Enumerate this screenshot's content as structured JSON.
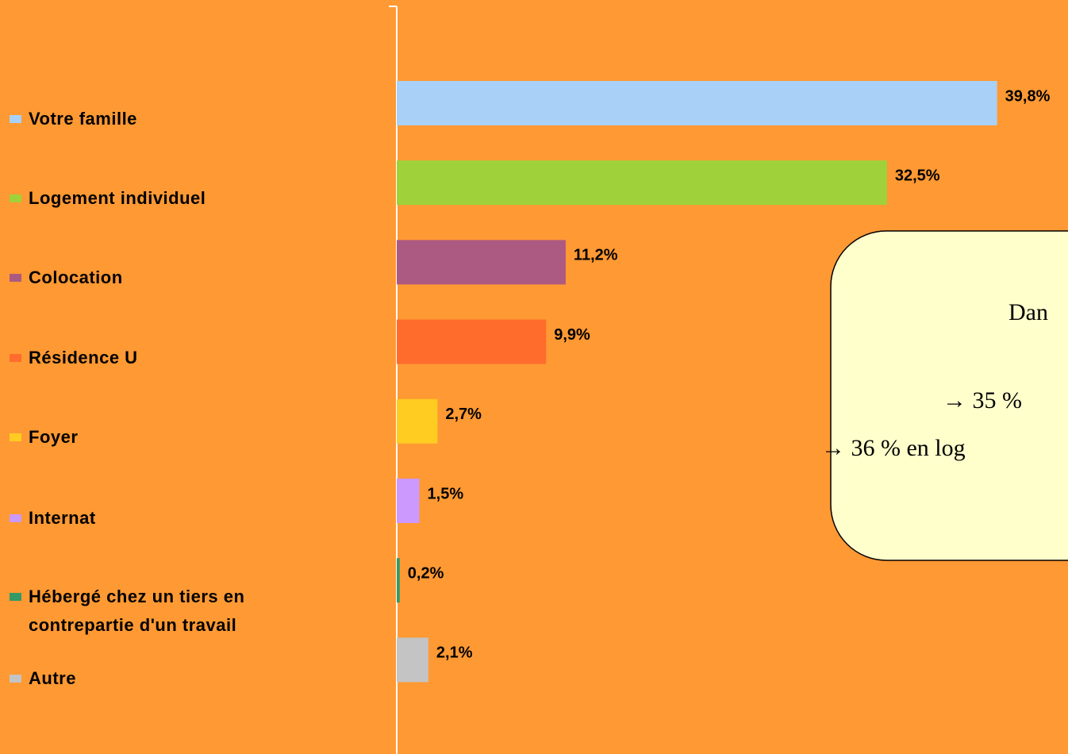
{
  "chart_data": {
    "type": "barh",
    "categories": [
      "Votre famille",
      "Logement individuel",
      "Colocation",
      "Résidence U",
      "Foyer",
      "Internat",
      "Hébergé chez un tiers en contrepartie d'un travail",
      "Autre"
    ],
    "values": [
      39.8,
      32.5,
      11.2,
      9.9,
      2.7,
      1.5,
      0.2,
      2.1
    ],
    "value_labels": [
      "39,8%",
      "32,5%",
      "11,2%",
      "9,9%",
      "2,7%",
      "1,5%",
      "0,2%",
      "2,1%"
    ],
    "colors": [
      "#a9d1f7",
      "#9fd23a",
      "#ad5a82",
      "#ff6c2c",
      "#ffcc22",
      "#cc99ff",
      "#339966",
      "#c4c4c4"
    ],
    "xlim": [
      0,
      44.5
    ],
    "background": "#ff9933",
    "annotations": [
      "Dan",
      "→ 35 %",
      "→ 36 % en log"
    ]
  }
}
